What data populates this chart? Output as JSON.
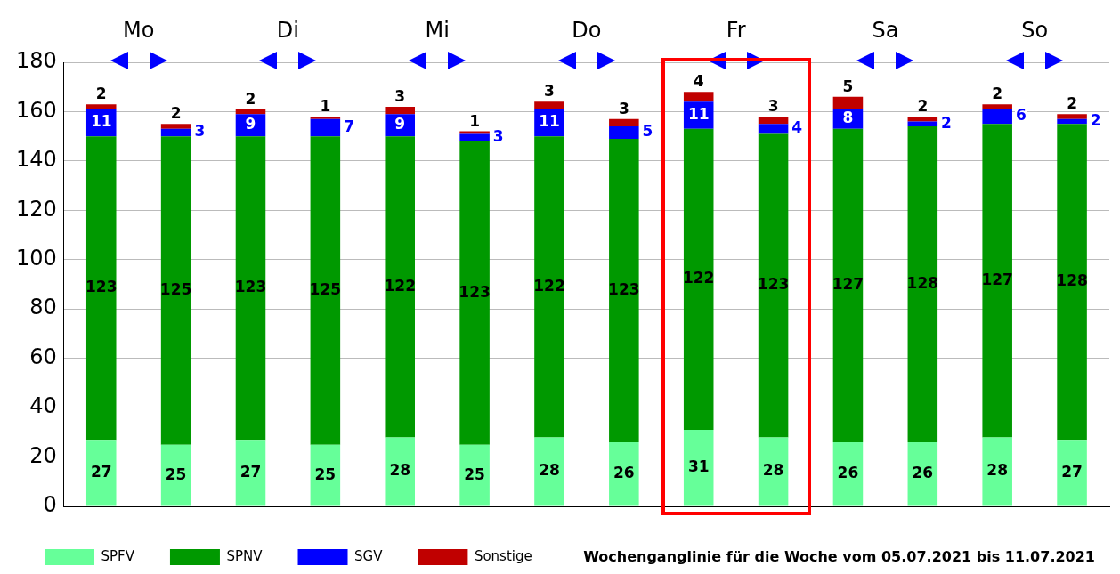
{
  "chart_data": {
    "type": "bar",
    "title": "Wochenganglinie für die Woche vom 05.07.2021 bis 11.07.2021",
    "categories": [
      null,
      null,
      null,
      null,
      null,
      null,
      null,
      null,
      null,
      null,
      null,
      null,
      null,
      null
    ],
    "stacked": true,
    "series": [
      {
        "name": "SPFV",
        "color": "#66ff99",
        "values": [
          27,
          25,
          27,
          25,
          28,
          25,
          28,
          26,
          31,
          28,
          26,
          26,
          28,
          27
        ]
      },
      {
        "name": "SPNV",
        "color": "#009900",
        "values": [
          123,
          125,
          123,
          125,
          122,
          123,
          122,
          123,
          122,
          123,
          127,
          128,
          127,
          128
        ]
      },
      {
        "name": "SGV",
        "color": "#0000ff",
        "values": [
          11,
          3,
          9,
          7,
          9,
          3,
          11,
          5,
          11,
          4,
          8,
          2,
          6,
          2
        ]
      },
      {
        "name": "Sonstige",
        "color": "#c00000",
        "values": [
          2,
          2,
          2,
          1,
          3,
          1,
          3,
          3,
          4,
          3,
          5,
          2,
          2,
          2
        ]
      }
    ],
    "annotations": [
      "Mo",
      "Di",
      "Mi",
      "Do",
      "Fr",
      "Sa",
      "So"
    ],
    "ylim": [
      0,
      180
    ],
    "yticks": [
      0,
      20,
      40,
      60,
      80,
      100,
      120,
      140,
      160,
      180
    ],
    "grid": "y",
    "legend": "bottom",
    "data_labels": true,
    "tick_labels": "y"
  }
}
